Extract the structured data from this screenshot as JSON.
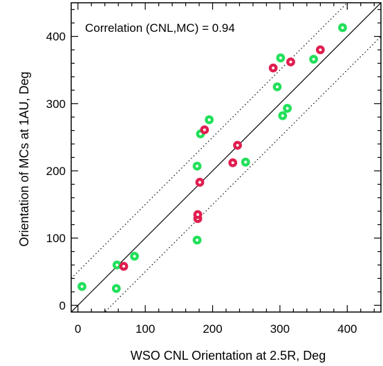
{
  "chart_data": {
    "type": "scatter",
    "xlabel": "WSO CNL Orientation at 2.5R, Deg",
    "ylabel": "Orientation of MCs at 1AU, Deg",
    "annotation": "Correlation (CNL,MC) = 0.94",
    "xlim": [
      -10,
      450
    ],
    "ylim": [
      -10,
      450
    ],
    "xticks": [
      0,
      100,
      200,
      300,
      400
    ],
    "yticks": [
      0,
      100,
      200,
      300,
      400
    ],
    "reference_lines": [
      {
        "style": "solid",
        "offset": 0
      },
      {
        "style": "dotted",
        "offset": 50
      },
      {
        "style": "dotted",
        "offset": -50
      }
    ],
    "series": [
      {
        "color": "#22e05a",
        "points": [
          [
            6,
            28
          ],
          [
            57,
            25
          ],
          [
            58,
            60
          ],
          [
            84,
            73
          ],
          [
            177,
            97
          ],
          [
            177,
            207
          ],
          [
            182,
            255
          ],
          [
            195,
            276
          ],
          [
            249,
            213
          ],
          [
            296,
            325
          ],
          [
            301,
            368
          ],
          [
            304,
            282
          ],
          [
            311,
            293
          ],
          [
            350,
            366
          ],
          [
            393,
            413
          ]
        ]
      },
      {
        "color": "#e01e4f",
        "points": [
          [
            68,
            58
          ],
          [
            178,
            129
          ],
          [
            178,
            135
          ],
          [
            181,
            183
          ],
          [
            188,
            261
          ],
          [
            230,
            212
          ],
          [
            237,
            238
          ],
          [
            290,
            353
          ],
          [
            316,
            362
          ],
          [
            360,
            380
          ]
        ]
      }
    ]
  }
}
